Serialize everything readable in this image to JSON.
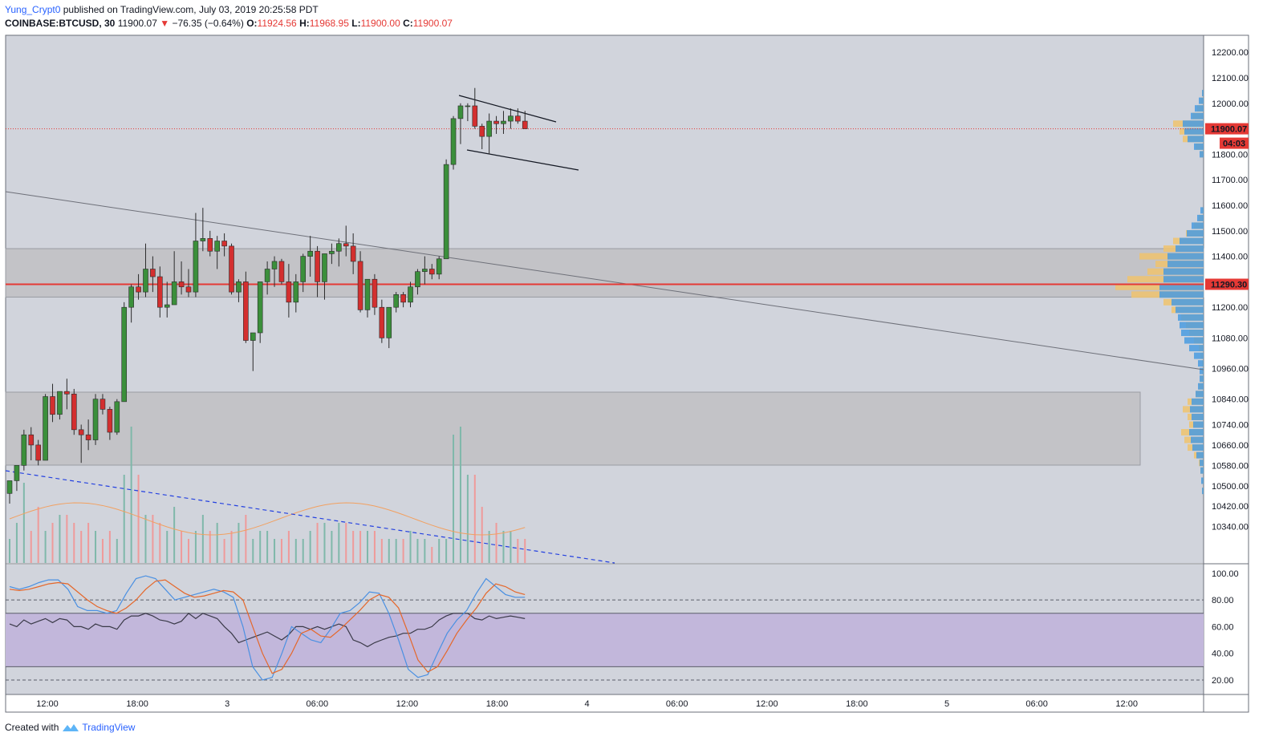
{
  "header": {
    "username": "Yung_Crypt0",
    "published_text": "published on TradingView.com, July 03, 2019 20:25:58 PDT",
    "symbol": "COINBASE:BTCUSD, 30",
    "last": "11900.07",
    "change": "−76.35 (−0.64%)",
    "o_label": "O:",
    "o_value": "11924.56",
    "h_label": "H:",
    "h_value": "11968.95",
    "l_label": "L:",
    "l_value": "11900.00",
    "c_label": "C:",
    "c_value": "11900.07"
  },
  "footer": {
    "created_with": "Created with",
    "brand": "TradingView"
  },
  "colors": {
    "up": "#3b8f3b",
    "down": "#d32f2f",
    "bg": "#d1d4dc",
    "zone": "#c3c3c7",
    "rsi_band": "#c2b7db",
    "vol_up": "#7fb8aa",
    "vol_down": "#ef9a9a",
    "vp_yellow": "#f0c36d",
    "vp_blue": "#4a9be0",
    "support": "#e53935"
  },
  "chart_data": {
    "type": "candlestick",
    "symbol": "COINBASE:BTCUSD",
    "interval": "30",
    "price_axis_ticks": [
      "12200.00",
      "12100.00",
      "12000.00",
      "11900.07",
      "11800.00",
      "11700.00",
      "11600.00",
      "11500.00",
      "11400.00",
      "11290.30",
      "11200.00",
      "11080.00",
      "10960.00",
      "10840.00",
      "10740.00",
      "10660.00",
      "10580.00",
      "10500.00",
      "10420.00",
      "10340.00"
    ],
    "last_price_label": "11900.07",
    "countdown_label": "04:03",
    "support_label": "11290.30",
    "time_axis_ticks": [
      "12:00",
      "18:00",
      "3",
      "06:00",
      "12:00",
      "18:00",
      "4",
      "06:00",
      "12:00",
      "18:00",
      "5",
      "06:00",
      "12:00"
    ],
    "rsi_axis_ticks": [
      "100.00",
      "80.00",
      "60.00",
      "40.00",
      "20.00"
    ],
    "candles": [
      [
        10470,
        10520,
        10430,
        10520
      ],
      [
        10520,
        10580,
        10480,
        10580
      ],
      [
        10580,
        10720,
        10560,
        10700
      ],
      [
        10700,
        10730,
        10600,
        10660
      ],
      [
        10660,
        10680,
        10580,
        10600
      ],
      [
        10600,
        10860,
        10600,
        10850
      ],
      [
        10850,
        10900,
        10750,
        10780
      ],
      [
        10780,
        10870,
        10760,
        10870
      ],
      [
        10870,
        10920,
        10800,
        10860
      ],
      [
        10860,
        10880,
        10700,
        10720
      ],
      [
        10720,
        10740,
        10590,
        10700
      ],
      [
        10700,
        10760,
        10640,
        10680
      ],
      [
        10680,
        10860,
        10660,
        10840
      ],
      [
        10840,
        10860,
        10780,
        10800
      ],
      [
        10800,
        10810,
        10680,
        10710
      ],
      [
        10710,
        10840,
        10700,
        10830
      ],
      [
        10830,
        11220,
        10830,
        11200
      ],
      [
        11200,
        11290,
        11140,
        11280
      ],
      [
        11280,
        11330,
        11230,
        11260
      ],
      [
        11260,
        11450,
        11240,
        11350
      ],
      [
        11350,
        11400,
        11260,
        11320
      ],
      [
        11320,
        11360,
        11160,
        11200
      ],
      [
        11200,
        11300,
        11160,
        11210
      ],
      [
        11210,
        11420,
        11210,
        11300
      ],
      [
        11300,
        11380,
        11250,
        11280
      ],
      [
        11280,
        11350,
        11240,
        11260
      ],
      [
        11260,
        11570,
        11240,
        11460
      ],
      [
        11460,
        11590,
        11420,
        11470
      ],
      [
        11470,
        11500,
        11400,
        11420
      ],
      [
        11420,
        11480,
        11350,
        11460
      ],
      [
        11460,
        11490,
        11400,
        11440
      ],
      [
        11440,
        11450,
        11250,
        11260
      ],
      [
        11260,
        11310,
        11220,
        11300
      ],
      [
        11300,
        11340,
        11060,
        11070
      ],
      [
        11070,
        11100,
        10950,
        11100
      ],
      [
        11100,
        11300,
        11060,
        11300
      ],
      [
        11300,
        11380,
        11250,
        11350
      ],
      [
        11350,
        11400,
        11280,
        11380
      ],
      [
        11380,
        11390,
        11290,
        11300
      ],
      [
        11300,
        11370,
        11160,
        11220
      ],
      [
        11220,
        11330,
        11180,
        11300
      ],
      [
        11300,
        11410,
        11260,
        11400
      ],
      [
        11400,
        11480,
        11320,
        11420
      ],
      [
        11420,
        11440,
        11240,
        11300
      ],
      [
        11300,
        11410,
        11230,
        11410
      ],
      [
        11410,
        11450,
        11370,
        11420
      ],
      [
        11420,
        11470,
        11360,
        11450
      ],
      [
        11450,
        11520,
        11400,
        11440
      ],
      [
        11440,
        11490,
        11330,
        11380
      ],
      [
        11380,
        11420,
        11180,
        11190
      ],
      [
        11190,
        11300,
        11160,
        11310
      ],
      [
        11310,
        11330,
        11170,
        11200
      ],
      [
        11200,
        11230,
        11060,
        11080
      ],
      [
        11080,
        11200,
        11040,
        11200
      ],
      [
        11200,
        11260,
        11180,
        11250
      ],
      [
        11250,
        11260,
        11200,
        11220
      ],
      [
        11220,
        11300,
        11200,
        11280
      ],
      [
        11280,
        11350,
        11250,
        11340
      ],
      [
        11340,
        11400,
        11290,
        11350
      ],
      [
        11350,
        11370,
        11310,
        11330
      ],
      [
        11330,
        11400,
        11310,
        11390
      ],
      [
        11390,
        11780,
        11390,
        11760
      ],
      [
        11760,
        11950,
        11740,
        11940
      ],
      [
        11940,
        12000,
        11840,
        11990
      ],
      [
        11990,
        12000,
        11930,
        11990
      ],
      [
        11990,
        12060,
        11900,
        11910
      ],
      [
        11910,
        11920,
        11820,
        11870
      ],
      [
        11870,
        11960,
        11800,
        11930
      ],
      [
        11930,
        11950,
        11880,
        11920
      ],
      [
        11920,
        11970,
        11880,
        11930
      ],
      [
        11930,
        11980,
        11900,
        11950
      ],
      [
        11950,
        11980,
        11920,
        11930
      ],
      [
        11930,
        11970,
        11900,
        11900
      ]
    ],
    "volume": [
      30,
      50,
      100,
      40,
      70,
      40,
      50,
      60,
      60,
      50,
      40,
      50,
      40,
      30,
      40,
      30,
      110,
      170,
      110,
      60,
      60,
      50,
      40,
      70,
      40,
      30,
      40,
      60,
      40,
      50,
      30,
      40,
      50,
      60,
      30,
      40,
      40,
      30,
      30,
      40,
      30,
      30,
      40,
      50,
      50,
      40,
      50,
      50,
      40,
      40,
      40,
      40,
      30,
      30,
      30,
      30,
      40,
      30,
      30,
      20,
      30,
      30,
      160,
      170,
      110,
      110,
      70,
      40,
      50,
      40,
      40,
      30,
      30
    ],
    "rsi": [
      62,
      60,
      65,
      62,
      64,
      66,
      63,
      66,
      65,
      60,
      60,
      58,
      62,
      60,
      60,
      58,
      65,
      68,
      68,
      70,
      68,
      65,
      64,
      62,
      64,
      70,
      66,
      70,
      68,
      66,
      60,
      55,
      48,
      50,
      52,
      54,
      56,
      53,
      50,
      54,
      60,
      60,
      58,
      60,
      58,
      60,
      62,
      60,
      50,
      48,
      45,
      48,
      50,
      52,
      53,
      55,
      55,
      58,
      58,
      60,
      65,
      68,
      70,
      70,
      70,
      66,
      65,
      68,
      66,
      67,
      68,
      67,
      66
    ],
    "stoch_k": [
      90,
      88,
      90,
      93,
      95,
      95,
      88,
      75,
      72,
      72,
      70,
      72,
      85,
      96,
      98,
      96,
      88,
      80,
      82,
      84,
      86,
      88,
      86,
      82,
      60,
      30,
      20,
      22,
      40,
      60,
      55,
      50,
      48,
      58,
      70,
      72,
      78,
      86,
      85,
      70,
      50,
      28,
      22,
      24,
      40,
      55,
      65,
      72,
      85,
      96,
      90,
      84,
      82,
      82
    ],
    "stoch_d": [
      88,
      87,
      88,
      90,
      92,
      93,
      92,
      86,
      80,
      75,
      72,
      70,
      74,
      80,
      88,
      94,
      95,
      90,
      85,
      82,
      83,
      85,
      87,
      86,
      80,
      60,
      40,
      25,
      28,
      40,
      55,
      58,
      53,
      52,
      58,
      65,
      72,
      80,
      84,
      82,
      74,
      55,
      35,
      26,
      30,
      42,
      55,
      65,
      74,
      85,
      92,
      90,
      86,
      84
    ],
    "volume_profile": [
      [
        12040,
        2,
        4
      ],
      [
        12010,
        4,
        12
      ],
      [
        11980,
        8,
        22
      ],
      [
        11950,
        14,
        32
      ],
      [
        11920,
        38,
        52
      ],
      [
        11890,
        30,
        48
      ],
      [
        11860,
        26,
        40
      ],
      [
        11830,
        10,
        24
      ],
      [
        11800,
        4,
        10
      ],
      [
        11580,
        2,
        8
      ],
      [
        11550,
        6,
        16
      ],
      [
        11520,
        12,
        30
      ],
      [
        11490,
        22,
        42
      ],
      [
        11460,
        38,
        60
      ],
      [
        11430,
        50,
        70
      ],
      [
        11400,
        80,
        90
      ],
      [
        11370,
        60,
        90
      ],
      [
        11340,
        70,
        100
      ],
      [
        11310,
        95,
        100
      ],
      [
        11280,
        110,
        110
      ],
      [
        11250,
        90,
        110
      ],
      [
        11220,
        50,
        80
      ],
      [
        11190,
        40,
        70
      ],
      [
        11160,
        28,
        64
      ],
      [
        11130,
        22,
        60
      ],
      [
        11100,
        18,
        56
      ],
      [
        11070,
        12,
        48
      ],
      [
        11040,
        6,
        36
      ],
      [
        11010,
        4,
        24
      ],
      [
        10980,
        2,
        14
      ],
      [
        10950,
        2,
        10
      ],
      [
        10920,
        4,
        10
      ],
      [
        10890,
        6,
        14
      ],
      [
        10860,
        10,
        20
      ],
      [
        10830,
        20,
        30
      ],
      [
        10800,
        26,
        34
      ],
      [
        10770,
        20,
        30
      ],
      [
        10740,
        18,
        26
      ],
      [
        10710,
        28,
        36
      ],
      [
        10680,
        24,
        32
      ],
      [
        10650,
        20,
        28
      ],
      [
        10620,
        12,
        18
      ],
      [
        10590,
        6,
        10
      ],
      [
        10560,
        4,
        8
      ],
      [
        10520,
        2,
        6
      ],
      [
        10480,
        2,
        4
      ]
    ]
  }
}
